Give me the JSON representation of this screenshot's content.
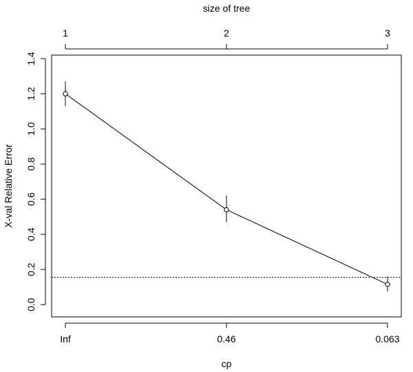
{
  "chart_data": {
    "type": "line",
    "title": "",
    "xlabel": "cp",
    "ylabel": "X-val Relative Error",
    "top_axis_label": "size of tree",
    "x_categories": [
      "Inf",
      "0.46",
      "0.063"
    ],
    "top_categories": [
      "1",
      "2",
      "3"
    ],
    "ylim": [
      -0.07,
      1.42
    ],
    "yticks": [
      "0.0",
      "0.2",
      "0.4",
      "0.6",
      "0.8",
      "1.0",
      "1.2",
      "1.4"
    ],
    "series": [
      {
        "values": [
          1.2,
          0.54,
          0.115
        ],
        "err_low": [
          1.13,
          0.47,
          0.075
        ],
        "err_high": [
          1.27,
          0.62,
          0.16
        ]
      }
    ],
    "reference_line": 0.155,
    "grid": false,
    "legend": "none"
  }
}
